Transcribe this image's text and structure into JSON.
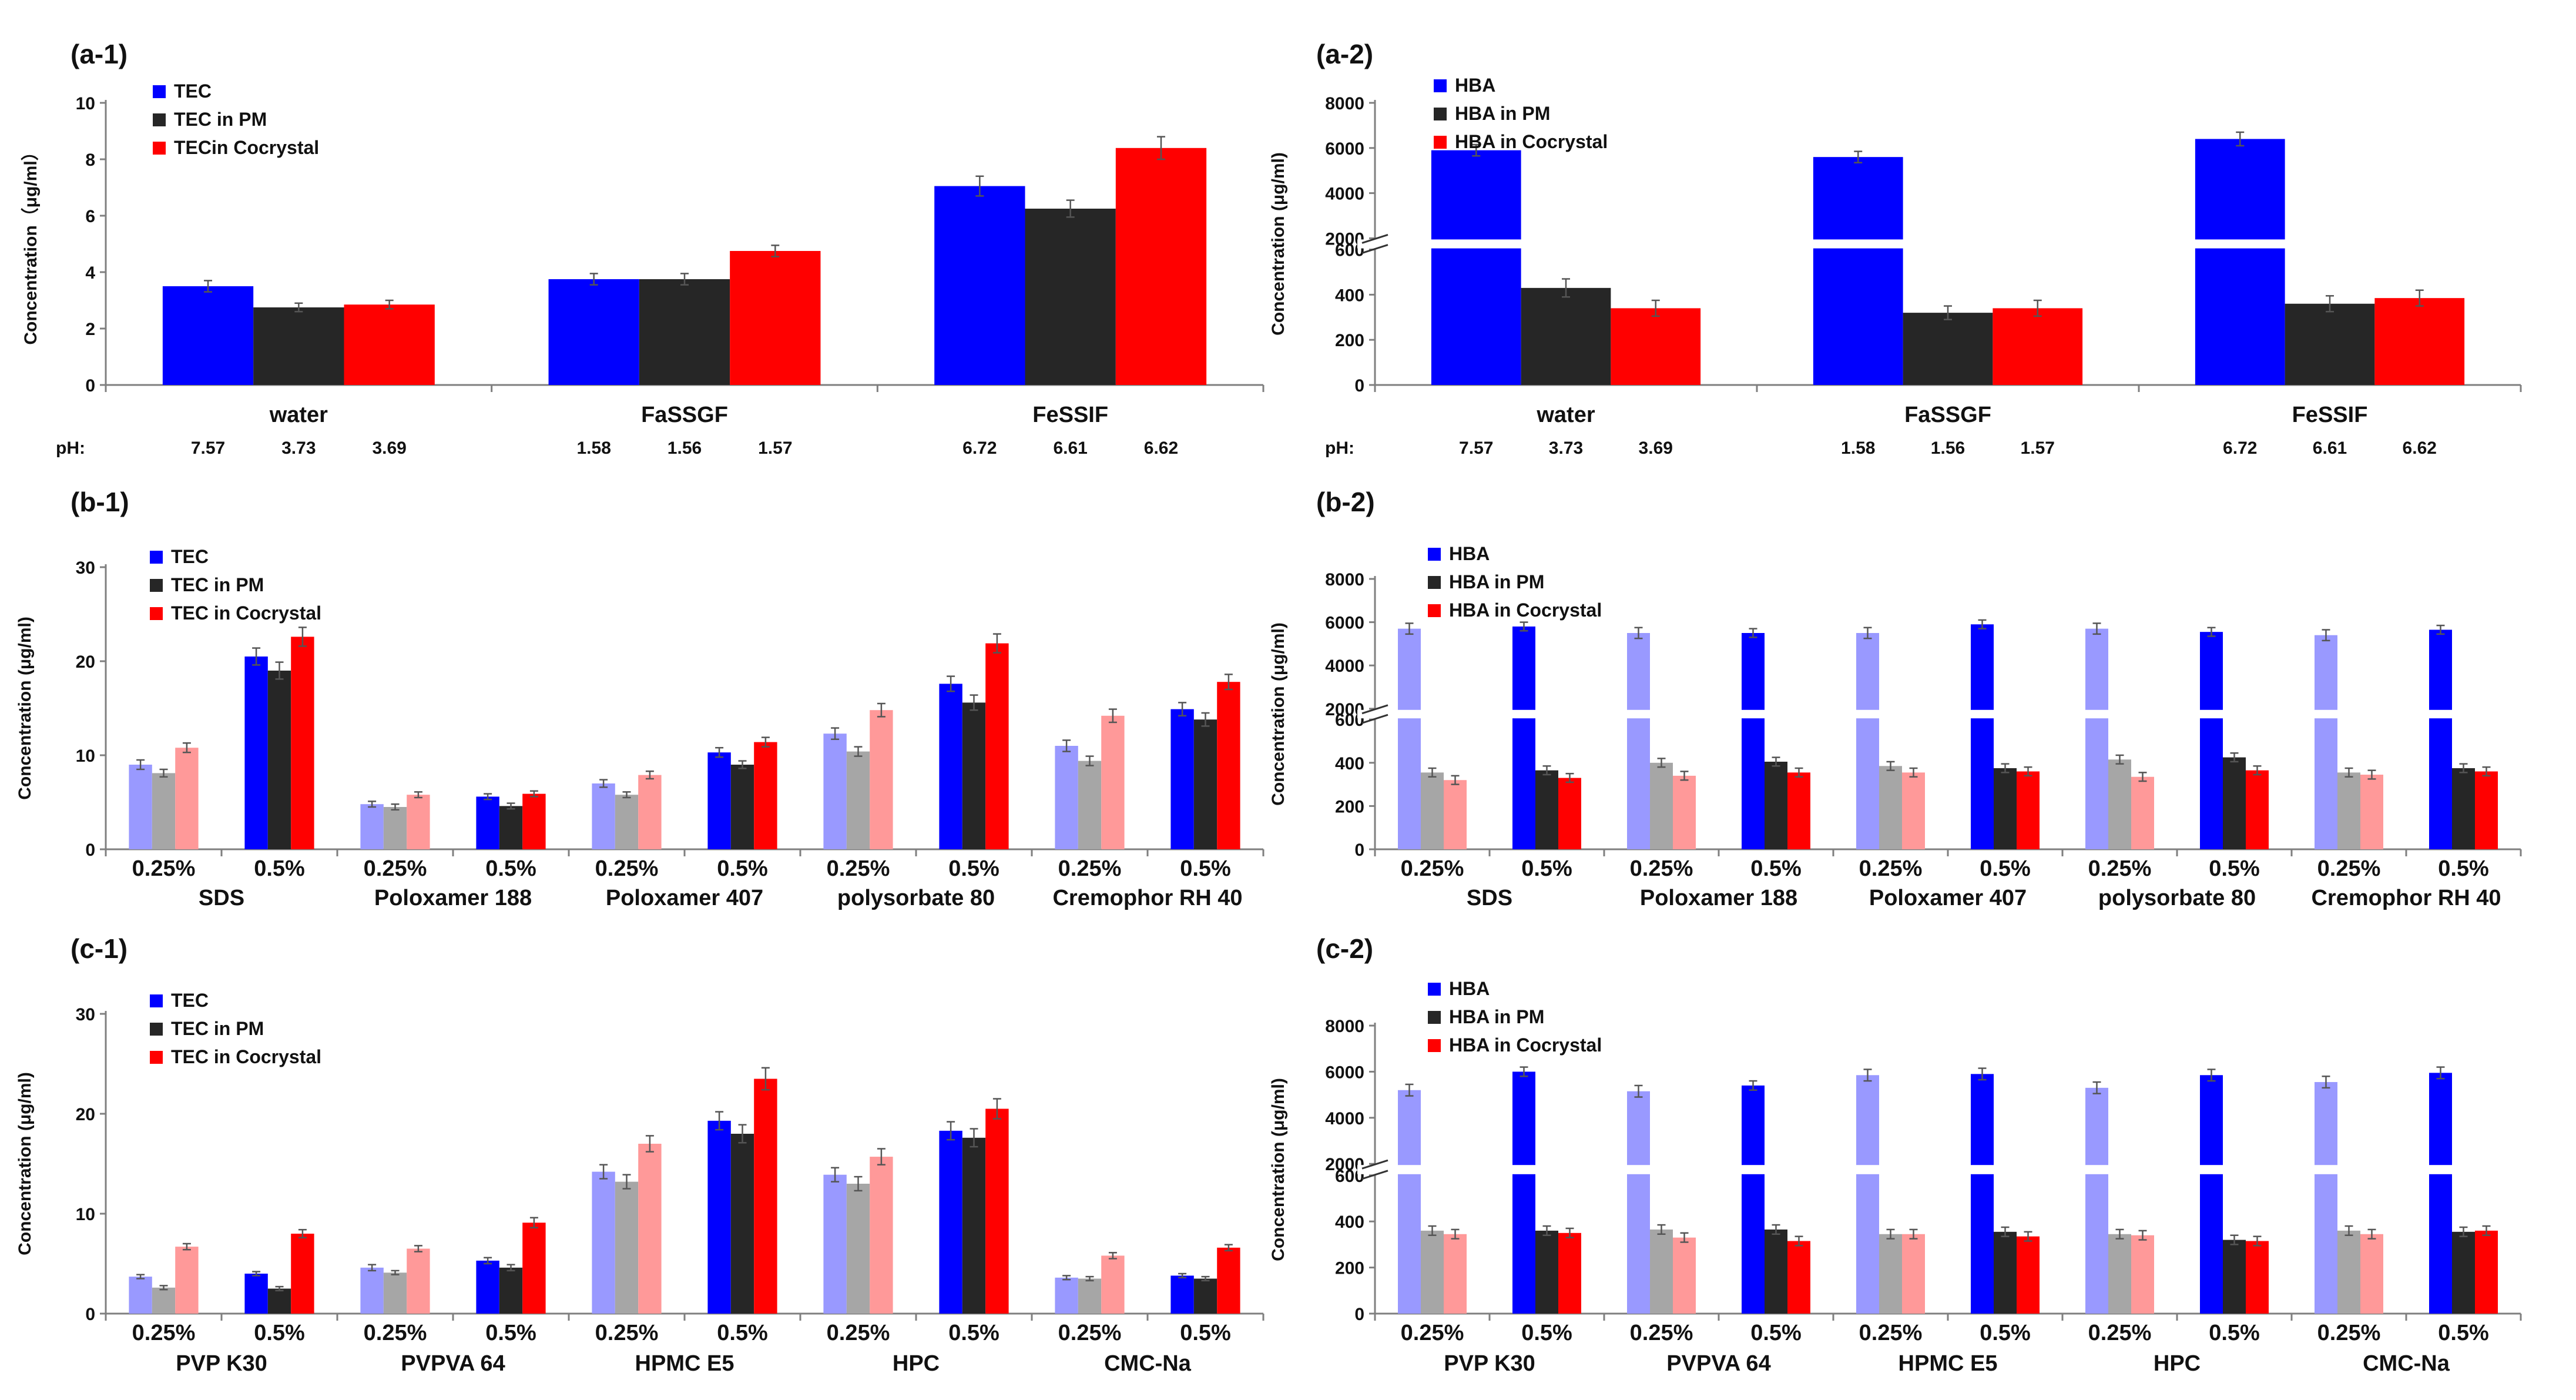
{
  "chart_data": [
    {
      "panel": "(a-1)",
      "type": "bar",
      "ylabel": "Concentration（μg/ml）",
      "ylim": [
        0,
        10
      ],
      "yticks": [
        "0",
        "2",
        "4",
        "6",
        "8",
        "10"
      ],
      "categories": [
        "water",
        "FaSSGF",
        "FeSSIF"
      ],
      "ph_label": "pH:",
      "ph_values": [
        [
          "7.57",
          "3.73",
          "3.69"
        ],
        [
          "1.58",
          "1.56",
          "1.57"
        ],
        [
          "6.72",
          "6.61",
          "6.62"
        ]
      ],
      "series": [
        {
          "name": "TEC",
          "color": "#0000ff",
          "values": [
            3.5,
            3.75,
            7.05
          ],
          "errors": [
            0.2,
            0.2,
            0.35
          ]
        },
        {
          "name": "TEC in PM",
          "color": "#262626",
          "values": [
            2.75,
            3.75,
            6.25
          ],
          "errors": [
            0.15,
            0.2,
            0.3
          ]
        },
        {
          "name": "TECin Cocrystal",
          "color": "#ff0000",
          "values": [
            2.85,
            4.75,
            8.4
          ],
          "errors": [
            0.15,
            0.2,
            0.4
          ]
        }
      ]
    },
    {
      "panel": "(a-2)",
      "type": "bar",
      "ylabel": "Concentration (μg/ml)",
      "broken_axis": true,
      "lower_ylim": [
        0,
        600
      ],
      "upper_ylim": [
        2000,
        8000
      ],
      "lower_ticks": [
        "0",
        "200",
        "400",
        "600"
      ],
      "upper_ticks": [
        "2000",
        "4000",
        "6000",
        "8000"
      ],
      "categories": [
        "water",
        "FaSSGF",
        "FeSSIF"
      ],
      "ph_label": "pH:",
      "ph_values": [
        [
          "7.57",
          "3.73",
          "3.69"
        ],
        [
          "1.58",
          "1.56",
          "1.57"
        ],
        [
          "6.72",
          "6.61",
          "6.62"
        ]
      ],
      "series": [
        {
          "name": "HBA",
          "color": "#0000ff",
          "values": [
            5900,
            5600,
            6400
          ],
          "errors": [
            250,
            250,
            300
          ]
        },
        {
          "name": "HBA in PM",
          "color": "#262626",
          "values": [
            430,
            320,
            360
          ],
          "errors": [
            40,
            30,
            35
          ]
        },
        {
          "name": "HBA in Cocrystal",
          "color": "#ff0000",
          "values": [
            340,
            340,
            385
          ],
          "errors": [
            35,
            35,
            35
          ]
        }
      ]
    },
    {
      "panel": "(b-1)",
      "type": "bar",
      "ylabel": "Concentration (μg/ml)",
      "ylim": [
        0,
        30
      ],
      "yticks": [
        "0",
        "10",
        "20",
        "30"
      ],
      "groups": [
        "SDS",
        "Poloxamer 188",
        "Poloxamer 407",
        "polysorbate 80",
        "Cremophor RH 40"
      ],
      "subcategories": [
        "0.25%",
        "0.5%"
      ],
      "series": [
        {
          "name": "TEC",
          "color": "#0000ff",
          "light_color": "#9999ff",
          "values": [
            9.0,
            20.5,
            4.8,
            5.6,
            7.0,
            10.3,
            12.3,
            17.6,
            11.0,
            14.9
          ],
          "errors": [
            0.5,
            0.9,
            0.3,
            0.3,
            0.4,
            0.5,
            0.6,
            0.8,
            0.6,
            0.7
          ]
        },
        {
          "name": "TEC in PM",
          "color": "#262626",
          "light_color": "#a6a6a6",
          "values": [
            8.1,
            19.0,
            4.5,
            4.6,
            5.8,
            9.0,
            10.4,
            15.6,
            9.4,
            13.8
          ],
          "errors": [
            0.4,
            0.9,
            0.3,
            0.3,
            0.3,
            0.4,
            0.5,
            0.8,
            0.5,
            0.7
          ]
        },
        {
          "name": "TEC in Cocrystal",
          "color": "#ff0000",
          "light_color": "#ff9999",
          "values": [
            10.8,
            22.6,
            5.8,
            5.9,
            7.9,
            11.4,
            14.8,
            21.9,
            14.2,
            17.8
          ],
          "errors": [
            0.5,
            1.0,
            0.3,
            0.3,
            0.4,
            0.5,
            0.7,
            1.0,
            0.7,
            0.8
          ]
        }
      ]
    },
    {
      "panel": "(b-2)",
      "type": "bar",
      "ylabel": "Concentration (μg/ml)",
      "broken_axis": true,
      "lower_ylim": [
        0,
        600
      ],
      "upper_ylim": [
        2000,
        8000
      ],
      "lower_ticks": [
        "0",
        "200",
        "400",
        "600"
      ],
      "upper_ticks": [
        "2000",
        "4000",
        "6000",
        "8000"
      ],
      "groups": [
        "SDS",
        "Poloxamer 188",
        "Poloxamer 407",
        "polysorbate 80",
        "Cremophor RH 40"
      ],
      "subcategories": [
        "0.25%",
        "0.5%"
      ],
      "series": [
        {
          "name": "HBA",
          "color": "#0000ff",
          "light_color": "#9999ff",
          "values": [
            5700,
            5800,
            5500,
            5500,
            5500,
            5900,
            5700,
            5550,
            5400,
            5650
          ],
          "errors": [
            250,
            200,
            250,
            200,
            250,
            200,
            250,
            200,
            250,
            200
          ]
        },
        {
          "name": "HBA in PM",
          "color": "#262626",
          "light_color": "#a6a6a6",
          "values": [
            355,
            365,
            400,
            405,
            385,
            375,
            415,
            425,
            355,
            375
          ],
          "errors": [
            20,
            20,
            20,
            20,
            20,
            20,
            20,
            20,
            20,
            20
          ]
        },
        {
          "name": "HBA in Cocrystal",
          "color": "#ff0000",
          "light_color": "#ff9999",
          "values": [
            320,
            330,
            340,
            355,
            355,
            360,
            335,
            365,
            345,
            360
          ],
          "errors": [
            20,
            20,
            20,
            20,
            20,
            20,
            20,
            20,
            20,
            20
          ]
        }
      ]
    },
    {
      "panel": "(c-1)",
      "type": "bar",
      "ylabel": "Concentration (μg/ml)",
      "ylim": [
        0,
        30
      ],
      "yticks": [
        "0",
        "10",
        "20",
        "30"
      ],
      "groups": [
        "PVP K30",
        "PVPVA 64",
        "HPMC E5",
        "HPC",
        "CMC-Na"
      ],
      "subcategories": [
        "0.25%",
        "0.5%"
      ],
      "series": [
        {
          "name": "TEC",
          "color": "#0000ff",
          "light_color": "#9999ff",
          "values": [
            3.7,
            4.0,
            4.6,
            5.3,
            14.2,
            19.3,
            13.9,
            18.3,
            3.6,
            3.8
          ],
          "errors": [
            0.2,
            0.2,
            0.3,
            0.3,
            0.7,
            0.9,
            0.7,
            0.9,
            0.2,
            0.2
          ]
        },
        {
          "name": "TEC in PM",
          "color": "#262626",
          "light_color": "#a6a6a6",
          "values": [
            2.6,
            2.5,
            4.1,
            4.6,
            13.2,
            18.0,
            13.0,
            17.6,
            3.5,
            3.5
          ],
          "errors": [
            0.2,
            0.2,
            0.2,
            0.3,
            0.7,
            0.9,
            0.7,
            0.9,
            0.2,
            0.2
          ]
        },
        {
          "name": "TEC in Cocrystal",
          "color": "#ff0000",
          "light_color": "#ff9999",
          "values": [
            6.7,
            8.0,
            6.5,
            9.1,
            17.0,
            23.5,
            15.7,
            20.5,
            5.8,
            6.6
          ],
          "errors": [
            0.3,
            0.4,
            0.3,
            0.5,
            0.8,
            1.1,
            0.8,
            1.0,
            0.3,
            0.3
          ]
        }
      ]
    },
    {
      "panel": "(c-2)",
      "type": "bar",
      "ylabel": "Concentration (μg/ml)",
      "broken_axis": true,
      "lower_ylim": [
        0,
        600
      ],
      "upper_ylim": [
        2000,
        8000
      ],
      "lower_ticks": [
        "0",
        "200",
        "400",
        "600"
      ],
      "upper_ticks": [
        "2000",
        "4000",
        "6000",
        "8000"
      ],
      "groups": [
        "PVP K30",
        "PVPVA 64",
        "HPMC E5",
        "HPC",
        "CMC-Na"
      ],
      "subcategories": [
        "0.25%",
        "0.5%"
      ],
      "series": [
        {
          "name": "HBA",
          "color": "#0000ff",
          "light_color": "#9999ff",
          "values": [
            5200,
            6000,
            5150,
            5400,
            5850,
            5900,
            5300,
            5850,
            5550,
            5950
          ],
          "errors": [
            250,
            200,
            250,
            200,
            250,
            250,
            250,
            250,
            250,
            250
          ]
        },
        {
          "name": "HBA in PM",
          "color": "#262626",
          "light_color": "#a6a6a6",
          "values": [
            360,
            360,
            365,
            365,
            345,
            355,
            345,
            320,
            360,
            355
          ],
          "errors": [
            20,
            20,
            20,
            20,
            20,
            20,
            20,
            20,
            20,
            20
          ]
        },
        {
          "name": "HBA in Cocrystal",
          "color": "#ff0000",
          "light_color": "#ff9999",
          "values": [
            345,
            350,
            330,
            315,
            345,
            335,
            340,
            315,
            345,
            360
          ],
          "errors": [
            20,
            20,
            20,
            20,
            20,
            20,
            20,
            20,
            20,
            20
          ]
        }
      ]
    }
  ]
}
